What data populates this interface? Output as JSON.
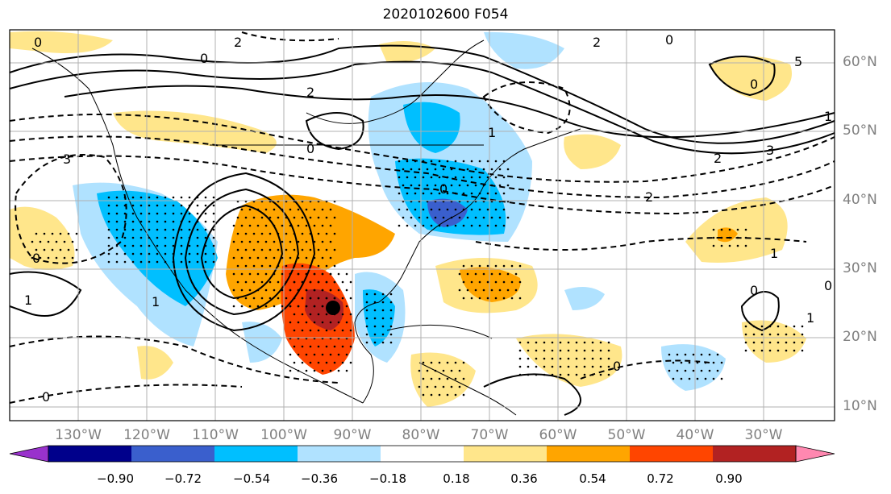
{
  "title": "2020102600 F054",
  "colors": {
    "ocean": "#ffffff",
    "grid": "#b0b0b0",
    "coast": "#000000",
    "contour": "#000000"
  },
  "lat_labels": [
    "60°N",
    "50°N",
    "40°N",
    "30°N",
    "20°N",
    "10°N"
  ],
  "lon_labels": [
    "130°W",
    "120°W",
    "110°W",
    "100°W",
    "90°W",
    "80°W",
    "70°W",
    "60°W",
    "50°W",
    "40°W",
    "30°W"
  ],
  "colorbar": {
    "colors": [
      "#9932cc",
      "#00008b",
      "#3a5fcd",
      "#00bfff",
      "#b0e2ff",
      "#ffffff",
      "#ffe68b",
      "#ffa500",
      "#ff4500",
      "#b22222",
      "#ff88b0"
    ],
    "labels": [
      "−0.90",
      "−0.72",
      "−0.54",
      "−0.36",
      "−0.18",
      "0.18",
      "0.36",
      "0.54",
      "0.72",
      "0.90"
    ]
  },
  "contour_labels": [
    "0",
    "2",
    "0",
    "2",
    "0",
    "1",
    "2",
    "0",
    "5",
    "1",
    "0",
    "3",
    "2",
    "3",
    "0",
    "2",
    "1",
    "1",
    "0",
    "0",
    "1",
    "1",
    "0",
    "0",
    "0"
  ],
  "marker": {
    "label": "storm-center"
  }
}
